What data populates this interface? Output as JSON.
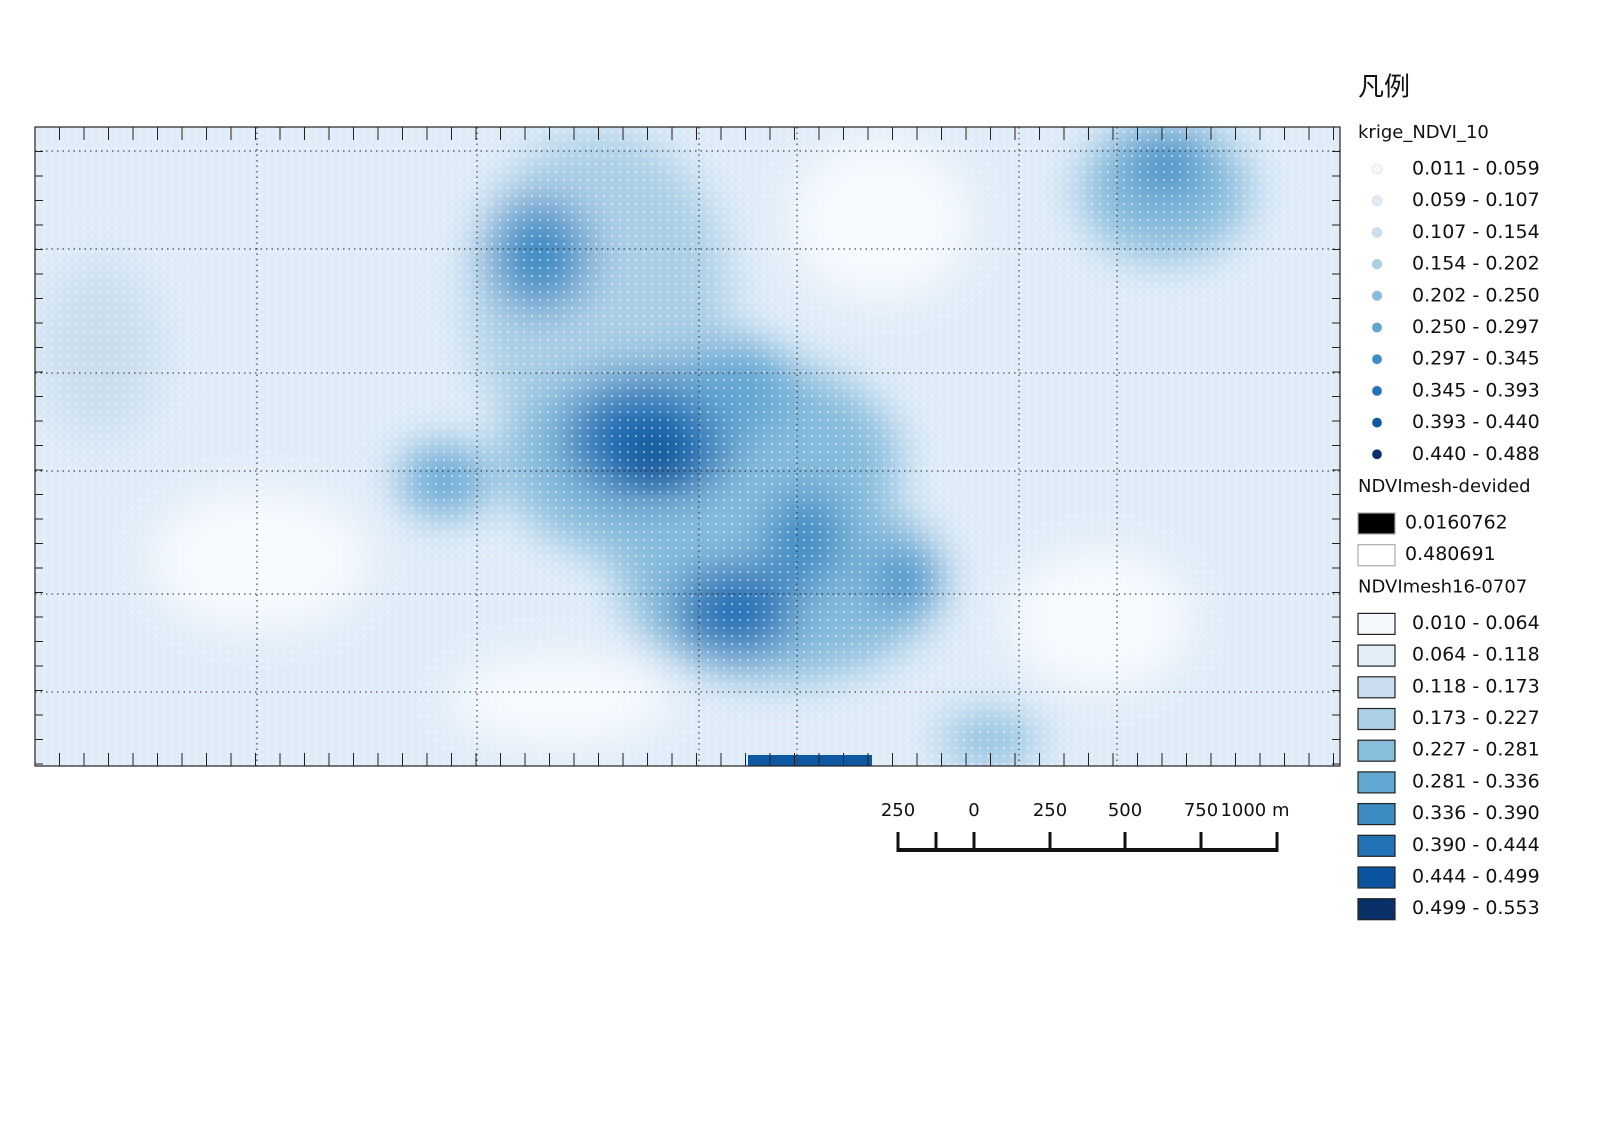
{
  "legend": {
    "title": "凡例",
    "layers": [
      {
        "name": "krige_NDVI_10",
        "symbol": "circle",
        "classes": [
          {
            "label": "0.011 - 0.059",
            "color": "#f4f8fd"
          },
          {
            "label": "0.059 - 0.107",
            "color": "#e0ecf8"
          },
          {
            "label": "0.107 - 0.154",
            "color": "#cadef0"
          },
          {
            "label": "0.154 - 0.202",
            "color": "#abcfe6"
          },
          {
            "label": "0.202 - 0.250",
            "color": "#86bcdc"
          },
          {
            "label": "0.250 - 0.297",
            "color": "#62a6d2"
          },
          {
            "label": "0.297 - 0.345",
            "color": "#3f8dc5"
          },
          {
            "label": "0.345 - 0.393",
            "color": "#2372b6"
          },
          {
            "label": "0.393 - 0.440",
            "color": "#0d58a1"
          },
          {
            "label": "0.440 - 0.488",
            "color": "#08306b"
          }
        ]
      },
      {
        "name": "NDVImesh-devided",
        "symbol": "gradient",
        "classes": [
          {
            "label": "0.0160762",
            "color": "#000000"
          },
          {
            "label": "0.480691",
            "color": "#ffffff"
          }
        ]
      },
      {
        "name": "NDVImesh16-0707",
        "symbol": "square",
        "classes": [
          {
            "label": "0.010 - 0.064",
            "color": "#f5f9fe"
          },
          {
            "label": "0.064 - 0.118",
            "color": "#e2edf8"
          },
          {
            "label": "0.118 - 0.173",
            "color": "#cbdef0"
          },
          {
            "label": "0.173 - 0.227",
            "color": "#acd0e6"
          },
          {
            "label": "0.227 - 0.281",
            "color": "#88bedc"
          },
          {
            "label": "0.281 - 0.336",
            "color": "#60a7d2"
          },
          {
            "label": "0.336 - 0.390",
            "color": "#3d8cc4"
          },
          {
            "label": "0.390 - 0.444",
            "color": "#2272b5"
          },
          {
            "label": "0.444 - 0.499",
            "color": "#0b539e"
          },
          {
            "label": "0.499 - 0.553",
            "color": "#0a306a"
          }
        ]
      }
    ]
  },
  "scale_bar": {
    "labels": [
      "250",
      "0",
      "250",
      "500",
      "750",
      "1000 m"
    ]
  }
}
